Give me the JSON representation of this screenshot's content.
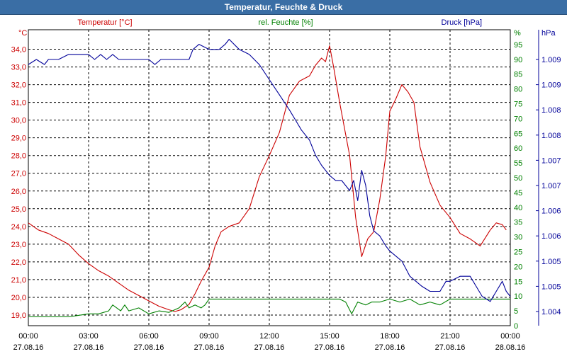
{
  "window": {
    "title": "Temperatur, Feuchte & Druck"
  },
  "chart_data": {
    "type": "line",
    "title": "Temperatur, Feuchte & Druck",
    "x_ticks": [
      {
        "h": 0,
        "time": "00:00",
        "date": "27.08.16"
      },
      {
        "h": 3,
        "time": "03:00",
        "date": "27.08.16"
      },
      {
        "h": 6,
        "time": "06:00",
        "date": "27.08.16"
      },
      {
        "h": 9,
        "time": "09:00",
        "date": "27.08.16"
      },
      {
        "h": 12,
        "time": "12:00",
        "date": "27.08.16"
      },
      {
        "h": 15,
        "time": "15:00",
        "date": "27.08.16"
      },
      {
        "h": 18,
        "time": "18:00",
        "date": "27.08.16"
      },
      {
        "h": 21,
        "time": "21:00",
        "date": "27.08.16"
      },
      {
        "h": 24,
        "time": "00:00",
        "date": "28.08.16"
      }
    ],
    "xlim": [
      0,
      24
    ],
    "axes": {
      "temperature": {
        "label": "Temperatur [°C]",
        "unit": "°C",
        "color": "#cc0000",
        "ylim": [
          18.4,
          35.1
        ],
        "ticks": [
          "19,0",
          "20,0",
          "21,0",
          "22,0",
          "23,0",
          "24,0",
          "25,0",
          "26,0",
          "27,0",
          "28,0",
          "29,0",
          "30,0",
          "31,0",
          "32,0",
          "33,0",
          "34,0"
        ]
      },
      "humidity": {
        "label": "rel. Feuchte [%]",
        "unit": "%",
        "color": "#008000",
        "ylim": [
          0,
          100
        ],
        "ticks": [
          "0",
          "5",
          "10",
          "15",
          "20",
          "25",
          "30",
          "35",
          "40",
          "45",
          "50",
          "55",
          "60",
          "65",
          "70",
          "75",
          "80",
          "85",
          "90",
          "95"
        ]
      },
      "pressure": {
        "label": "Druck [hPa]",
        "unit": "hPa",
        "color": "#000099",
        "ticks": [
          {
            "v": 1004.0,
            "label": "1.004"
          },
          {
            "v": 1004.5,
            "label": "1.005"
          },
          {
            "v": 1005.0,
            "label": "1.005"
          },
          {
            "v": 1005.5,
            "label": "1.006"
          },
          {
            "v": 1006.0,
            "label": "1.006"
          },
          {
            "v": 1006.5,
            "label": "1.007"
          },
          {
            "v": 1007.0,
            "label": "1.007"
          },
          {
            "v": 1007.5,
            "label": "1.008"
          },
          {
            "v": 1008.0,
            "label": "1.008"
          },
          {
            "v": 1008.5,
            "label": "1.009"
          },
          {
            "v": 1009.0,
            "label": "1.009"
          }
        ]
      }
    },
    "series": [
      {
        "name": "Temperatur",
        "axis": "temperature",
        "color": "#cc0000",
        "points": [
          [
            0,
            24.2
          ],
          [
            0.5,
            23.8
          ],
          [
            1,
            23.6
          ],
          [
            1.5,
            23.3
          ],
          [
            2,
            23.0
          ],
          [
            2.5,
            22.4
          ],
          [
            3,
            21.9
          ],
          [
            3.5,
            21.5
          ],
          [
            4,
            21.2
          ],
          [
            4.5,
            20.8
          ],
          [
            5,
            20.4
          ],
          [
            5.5,
            20.1
          ],
          [
            6,
            19.8
          ],
          [
            6.5,
            19.5
          ],
          [
            7,
            19.3
          ],
          [
            7.3,
            19.2
          ],
          [
            7.6,
            19.3
          ],
          [
            8,
            19.6
          ],
          [
            8.3,
            20.2
          ],
          [
            8.6,
            20.9
          ],
          [
            9,
            21.7
          ],
          [
            9.3,
            22.9
          ],
          [
            9.6,
            23.7
          ],
          [
            10,
            24.0
          ],
          [
            10.5,
            24.2
          ],
          [
            11,
            25.0
          ],
          [
            11.5,
            26.8
          ],
          [
            12,
            28.0
          ],
          [
            12.5,
            29.3
          ],
          [
            13,
            31.4
          ],
          [
            13.5,
            32.2
          ],
          [
            14,
            32.5
          ],
          [
            14.3,
            33.1
          ],
          [
            14.6,
            33.5
          ],
          [
            14.8,
            33.3
          ],
          [
            15.0,
            34.2
          ],
          [
            15.2,
            33.0
          ],
          [
            15.5,
            31.0
          ],
          [
            16,
            28.0
          ],
          [
            16.3,
            24.5
          ],
          [
            16.6,
            22.3
          ],
          [
            16.9,
            23.3
          ],
          [
            17.2,
            23.7
          ],
          [
            17.5,
            25.5
          ],
          [
            17.8,
            28.0
          ],
          [
            18,
            30.5
          ],
          [
            18.3,
            31.2
          ],
          [
            18.6,
            32.0
          ],
          [
            18.9,
            31.6
          ],
          [
            19.2,
            31.0
          ],
          [
            19.5,
            28.5
          ],
          [
            20,
            26.5
          ],
          [
            20.5,
            25.2
          ],
          [
            21,
            24.5
          ],
          [
            21.5,
            23.6
          ],
          [
            22,
            23.3
          ],
          [
            22.5,
            22.9
          ],
          [
            23,
            23.8
          ],
          [
            23.3,
            24.2
          ],
          [
            23.6,
            24.1
          ],
          [
            23.8,
            23.8
          ]
        ]
      },
      {
        "name": "rel. Feuchte",
        "axis": "humidity",
        "color": "#008000",
        "points": [
          [
            0,
            3
          ],
          [
            0.5,
            3
          ],
          [
            1,
            3
          ],
          [
            1.5,
            3
          ],
          [
            2,
            3
          ],
          [
            2.5,
            3.5
          ],
          [
            3,
            4
          ],
          [
            3.5,
            4
          ],
          [
            4,
            5
          ],
          [
            4.2,
            7
          ],
          [
            4.4,
            6
          ],
          [
            4.6,
            5
          ],
          [
            4.8,
            7
          ],
          [
            5,
            5
          ],
          [
            5.5,
            6
          ],
          [
            6,
            4
          ],
          [
            6.5,
            5
          ],
          [
            7,
            4.5
          ],
          [
            7.5,
            6
          ],
          [
            7.8,
            8
          ],
          [
            8,
            6
          ],
          [
            8.3,
            7
          ],
          [
            8.6,
            6
          ],
          [
            8.8,
            7
          ],
          [
            9,
            9
          ],
          [
            10,
            9
          ],
          [
            11,
            9
          ],
          [
            12,
            9
          ],
          [
            13,
            9
          ],
          [
            14,
            9
          ],
          [
            15,
            9
          ],
          [
            15.5,
            9
          ],
          [
            15.8,
            8
          ],
          [
            16.1,
            4
          ],
          [
            16.4,
            8
          ],
          [
            16.8,
            7
          ],
          [
            17.1,
            8
          ],
          [
            17.5,
            8
          ],
          [
            18,
            9
          ],
          [
            18.5,
            8
          ],
          [
            19,
            9
          ],
          [
            19.5,
            7
          ],
          [
            20,
            8
          ],
          [
            20.5,
            7
          ],
          [
            21,
            9
          ],
          [
            22,
            9
          ],
          [
            23,
            9
          ],
          [
            24,
            9
          ]
        ]
      },
      {
        "name": "Druck",
        "axis": "pressure",
        "color": "#000099",
        "points": [
          [
            0,
            1008.9
          ],
          [
            0.4,
            1009.0
          ],
          [
            0.8,
            1008.9
          ],
          [
            1,
            1009.0
          ],
          [
            1.5,
            1009.0
          ],
          [
            2,
            1009.1
          ],
          [
            2.5,
            1009.1
          ],
          [
            3,
            1009.1
          ],
          [
            3.3,
            1009.0
          ],
          [
            3.6,
            1009.1
          ],
          [
            3.9,
            1009.0
          ],
          [
            4.2,
            1009.1
          ],
          [
            4.5,
            1009.0
          ],
          [
            5,
            1009.0
          ],
          [
            5.5,
            1009.0
          ],
          [
            6,
            1009.0
          ],
          [
            6.3,
            1008.9
          ],
          [
            6.6,
            1009.0
          ],
          [
            7,
            1009.0
          ],
          [
            7.5,
            1009.0
          ],
          [
            8,
            1009.0
          ],
          [
            8.2,
            1009.2
          ],
          [
            8.5,
            1009.3
          ],
          [
            9,
            1009.2
          ],
          [
            9.5,
            1009.2
          ],
          [
            9.8,
            1009.3
          ],
          [
            10,
            1009.4
          ],
          [
            10.5,
            1009.2
          ],
          [
            11,
            1009.1
          ],
          [
            11.5,
            1008.9
          ],
          [
            12,
            1008.6
          ],
          [
            12.5,
            1008.3
          ],
          [
            13,
            1008.0
          ],
          [
            13.3,
            1007.8
          ],
          [
            13.6,
            1007.6
          ],
          [
            14,
            1007.4
          ],
          [
            14.3,
            1007.1
          ],
          [
            14.6,
            1006.9
          ],
          [
            15,
            1006.7
          ],
          [
            15.3,
            1006.6
          ],
          [
            15.6,
            1006.6
          ],
          [
            16,
            1006.4
          ],
          [
            16.2,
            1006.6
          ],
          [
            16.4,
            1006.2
          ],
          [
            16.6,
            1006.8
          ],
          [
            16.8,
            1006.5
          ],
          [
            17,
            1005.9
          ],
          [
            17.2,
            1005.6
          ],
          [
            17.5,
            1005.5
          ],
          [
            17.8,
            1005.3
          ],
          [
            18,
            1005.2
          ],
          [
            18.3,
            1005.1
          ],
          [
            18.6,
            1005.0
          ],
          [
            19,
            1004.7
          ],
          [
            19.3,
            1004.6
          ],
          [
            19.6,
            1004.5
          ],
          [
            20,
            1004.4
          ],
          [
            20.5,
            1004.4
          ],
          [
            20.8,
            1004.6
          ],
          [
            21,
            1004.6
          ],
          [
            21.5,
            1004.7
          ],
          [
            22,
            1004.7
          ],
          [
            22.3,
            1004.5
          ],
          [
            22.6,
            1004.3
          ],
          [
            23,
            1004.2
          ],
          [
            23.3,
            1004.4
          ],
          [
            23.6,
            1004.6
          ],
          [
            23.8,
            1004.4
          ],
          [
            24,
            1004.3
          ]
        ]
      }
    ],
    "grid": true
  }
}
